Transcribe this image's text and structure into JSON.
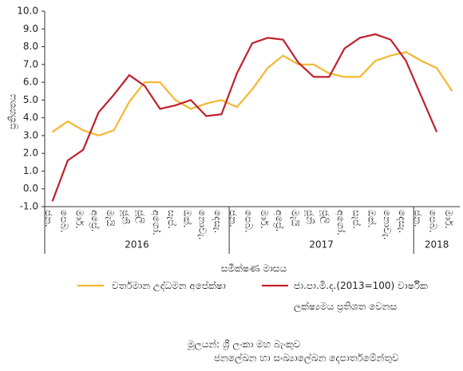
{
  "chart_data": {
    "type": "line",
    "y_label": "ප්‍රතිශතය",
    "x_label": "සමීක්ෂණ මාසය",
    "categories": [
      "ජන.",
      "පෙබ.",
      "මාර්.",
      "අප්‍රේ.",
      "මැයි",
      "ජූනි",
      "ජූලි",
      "අගෝ.",
      "සැප්.",
      "ඔක්.",
      "නොවැ.",
      "දෙසැ.",
      "ජන.",
      "පෙබ.",
      "මාර්.",
      "අප්‍රේ.",
      "මැයි",
      "ජූනි",
      "ජූලි",
      "අගෝ.",
      "සැප්.",
      "ඔක්.",
      "නොවැ.",
      "දෙසැ.",
      "ජන.",
      "පෙබ.",
      "මාර්."
    ],
    "years": [
      "2016",
      "2017",
      "2018"
    ],
    "series": [
      {
        "name": "වර්තමාන උද්ධමන අපේක්ෂා",
        "color": "#f5b731",
        "values": [
          3.2,
          3.8,
          3.3,
          3.0,
          3.3,
          4.9,
          6.0,
          6.0,
          5.0,
          4.5,
          4.8,
          5.0,
          4.6,
          5.6,
          6.8,
          7.5,
          7.0,
          7.0,
          6.5,
          6.3,
          6.3,
          7.2,
          7.5,
          7.7,
          7.2,
          6.8,
          5.5
        ]
      },
      {
        "name": "ජා.පා.මි.ද.(2013=100) වාර්ෂික ලක්ෂ්‍යමය ප්‍රතිශත වෙනස",
        "color": "#c0202e",
        "values": [
          -0.7,
          1.6,
          2.2,
          4.3,
          5.3,
          6.4,
          5.8,
          4.5,
          4.7,
          5.0,
          4.1,
          4.2,
          6.5,
          8.2,
          8.5,
          8.4,
          7.1,
          6.3,
          6.3,
          7.9,
          8.5,
          8.7,
          8.4,
          7.2,
          5.2,
          3.2,
          null
        ]
      }
    ],
    "ylim": [
      -1,
      10
    ],
    "yticks": [
      {
        "value": -1,
        "label": "-1.0"
      },
      {
        "value": 0,
        "label": "0.0"
      },
      {
        "value": 1,
        "label": "1.0"
      },
      {
        "value": 2,
        "label": "2.0"
      },
      {
        "value": 3,
        "label": "3.0"
      },
      {
        "value": 4,
        "label": "4.0"
      },
      {
        "value": 5,
        "label": "5.0"
      },
      {
        "value": 6,
        "label": "6.0"
      },
      {
        "value": 7,
        "label": "7.0"
      },
      {
        "value": 8,
        "label": "8.0"
      },
      {
        "value": 9,
        "label": "9.0"
      },
      {
        "value": 10,
        "label": "10.0"
      }
    ],
    "grid": false,
    "source": [
      "මූලයන්: ශ්‍රී ලංකා මහ බැංකුව",
      "ජනලේඛන හා සංඛ්‍යාලේඛන දෙපාර්තමේන්තුව"
    ]
  }
}
